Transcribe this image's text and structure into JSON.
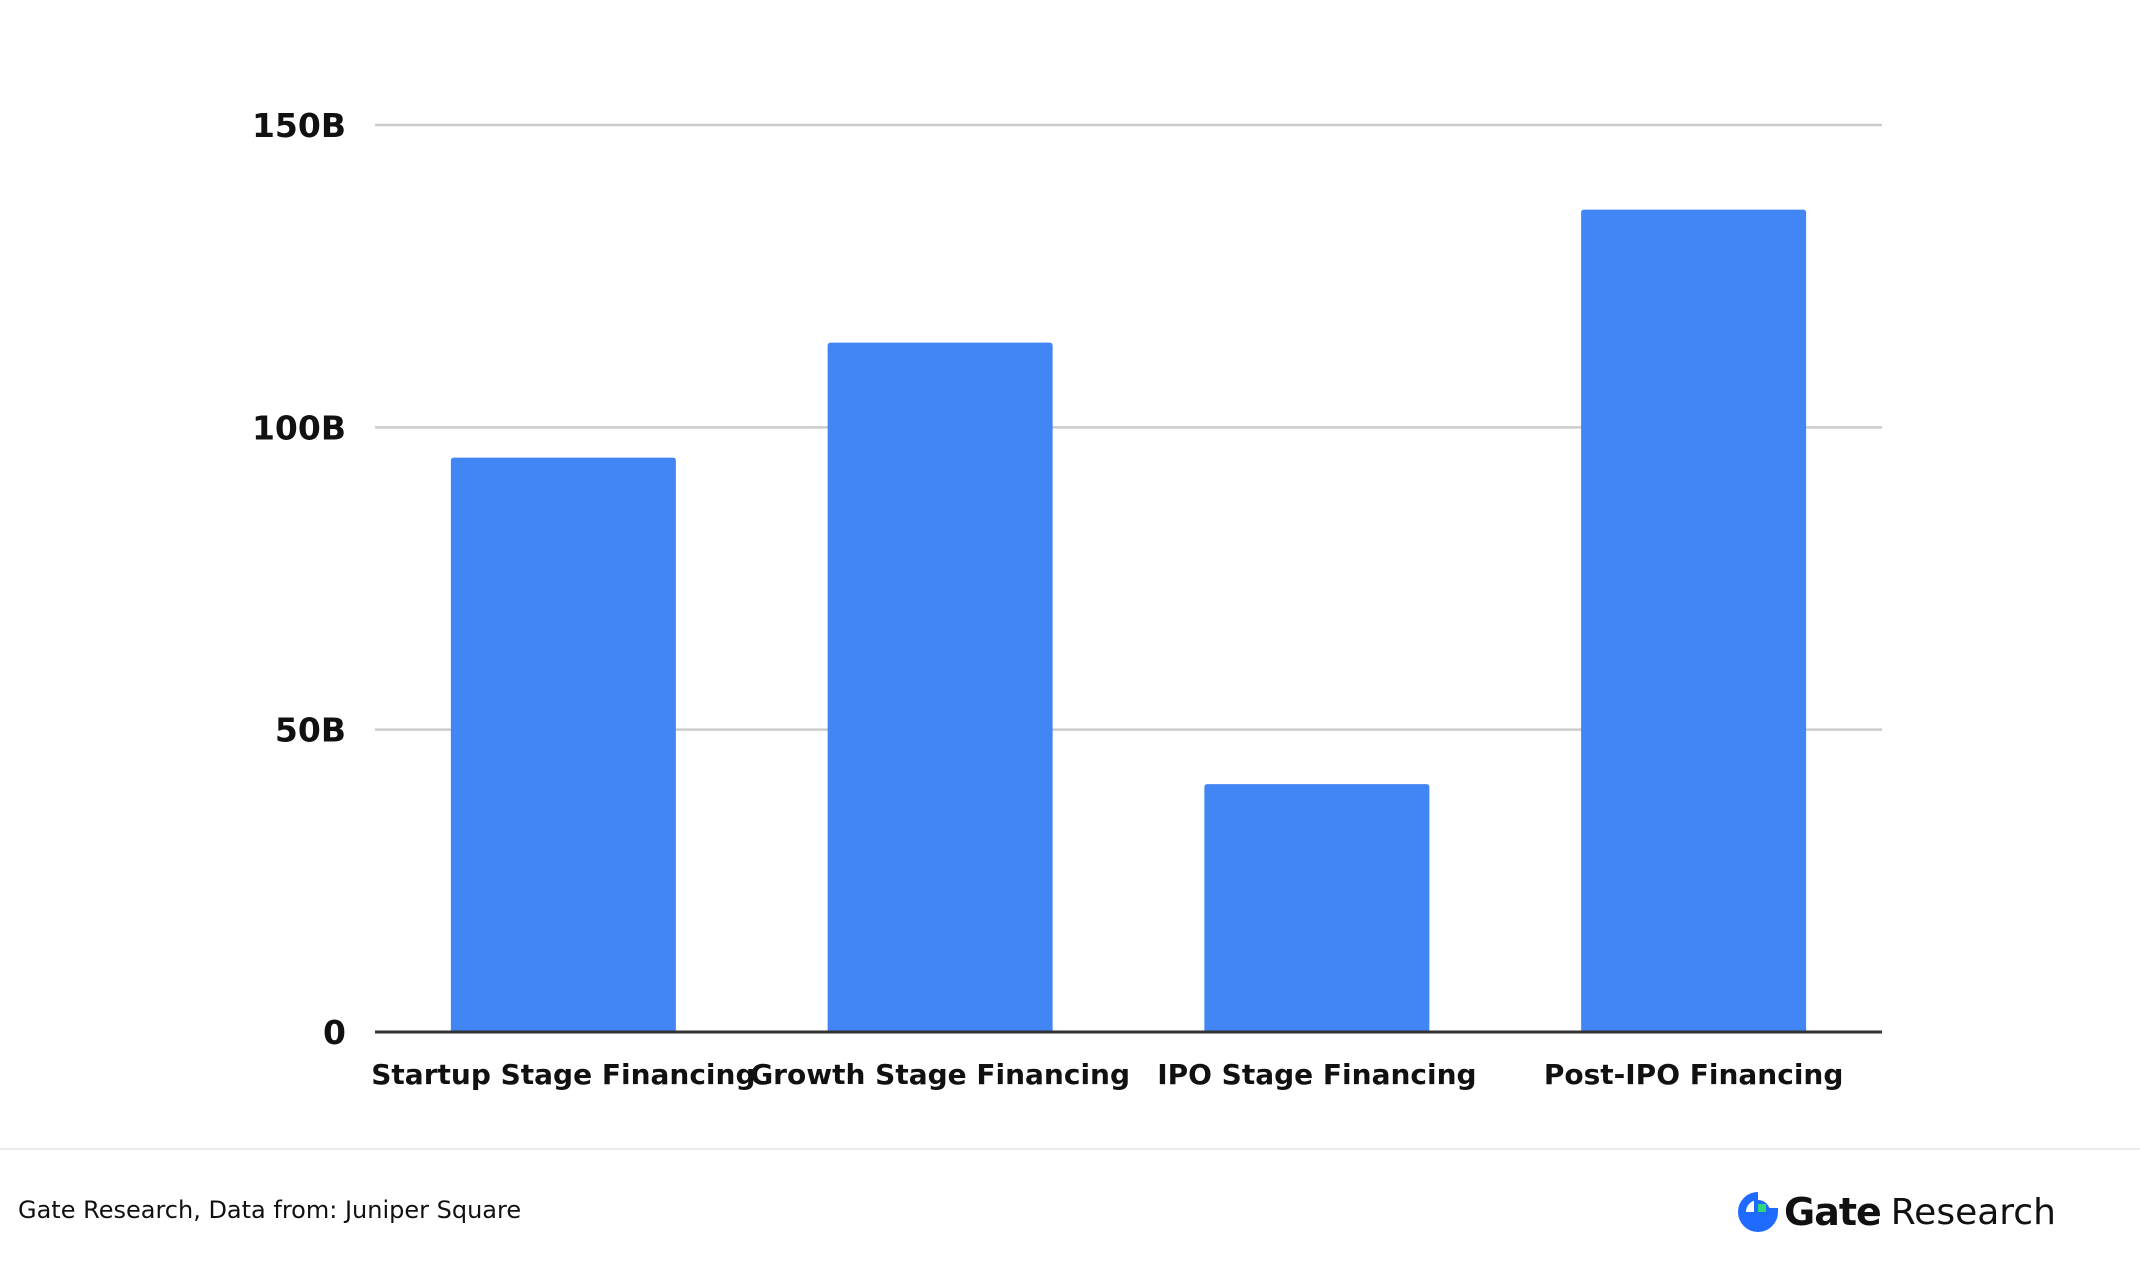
{
  "chart_data": {
    "type": "bar",
    "title": "",
    "xlabel": "",
    "ylabel": "",
    "categories": [
      "Startup Stage Financing",
      "Growth Stage Financing",
      "IPO Stage Financing",
      "Post-IPO Financing"
    ],
    "values": [
      95,
      114,
      41,
      136
    ],
    "value_unit": "B",
    "ylim": [
      0,
      150
    ],
    "yticks": [
      0,
      50,
      100,
      150
    ],
    "ytick_labels": [
      "0",
      "50B",
      "100B",
      "150B"
    ],
    "grid": true,
    "legend": "none",
    "bar_color": "#4285f4"
  },
  "footer": {
    "source": "Gate Research, Data from: Juniper Square",
    "brand_name": "Gate",
    "brand_suffix": "Research",
    "brand_icon": "gate-logo-icon"
  },
  "colors": {
    "bar": "#4285f4",
    "grid": "#cccccc",
    "axis": "#333333",
    "logo_blue": "#1f6bff",
    "logo_green": "#2bd97c"
  }
}
